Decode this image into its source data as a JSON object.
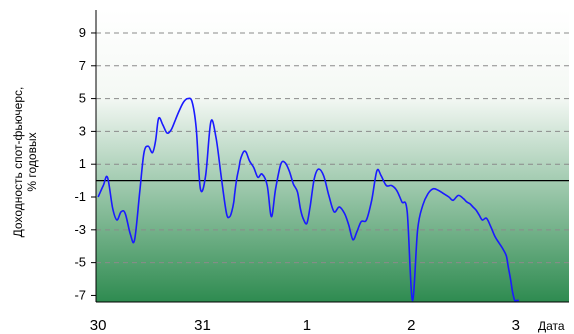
{
  "chart_data": {
    "type": "line",
    "title": "",
    "xlabel": "Дата",
    "ylabel": [
      "Доходность спот-фьючерс,",
      "% годовых"
    ],
    "ylim": [
      -7.4,
      10.4
    ],
    "xlim": [
      -0.02,
      4.51
    ],
    "yticks": [
      "9",
      "7",
      "5",
      "3",
      "1",
      "-1",
      "-3",
      "-5",
      "-7"
    ],
    "xticks": [
      "30",
      "31",
      "1",
      "2",
      "3"
    ],
    "grid": "horizontal dashed",
    "colors": {
      "line": "#1a1aff",
      "zero_line": "#000000",
      "bg_top": "#ffffff",
      "bg_bottom": "#2e8b50"
    },
    "series": [
      {
        "x": [
          0.0,
          0.05,
          0.09,
          0.14,
          0.18,
          0.22,
          0.26,
          0.31,
          0.35,
          0.4,
          0.44,
          0.48,
          0.52,
          0.55,
          0.58,
          0.62,
          0.66,
          0.7,
          0.74,
          0.78,
          0.82,
          0.86,
          0.9,
          0.94,
          0.98,
          1.03,
          1.08,
          1.13,
          1.18,
          1.23,
          1.26,
          1.28,
          1.3,
          1.31,
          1.33,
          1.35,
          1.36,
          1.38,
          1.4,
          1.42,
          1.45,
          1.49,
          1.53,
          1.57,
          1.62,
          1.66,
          1.7,
          1.75,
          1.79,
          1.83,
          1.87,
          1.91,
          1.94,
          1.97,
          2.0,
          2.03,
          2.07,
          2.11,
          2.16,
          2.21,
          2.26,
          2.31,
          2.36,
          2.4,
          2.44,
          2.48,
          2.52,
          2.57,
          2.62,
          2.67,
          2.71,
          2.76,
          2.81,
          2.86,
          2.91,
          2.96,
          3.01,
          3.06,
          3.11,
          3.16,
          3.21,
          3.26,
          3.31,
          3.36,
          3.4,
          3.45,
          3.5,
          3.53,
          3.56,
          3.59,
          3.62,
          3.65,
          3.68,
          3.72,
          3.76,
          3.8,
          3.84,
          3.88,
          3.91,
          3.93,
          3.95,
          3.97,
          3.99,
          4.01,
          4.03
        ],
        "y": [
          -1.0,
          -0.3,
          0.2,
          -1.7,
          -2.4,
          -1.9,
          -2.0,
          -3.3,
          -3.6,
          -0.6,
          1.7,
          2.1,
          1.7,
          2.4,
          3.8,
          3.4,
          2.9,
          3.1,
          3.7,
          4.3,
          4.8,
          5.0,
          4.8,
          3.2,
          -0.5,
          0.3,
          3.6,
          2.6,
          0.2,
          -2.0,
          -2.2,
          -1.9,
          -1.3,
          -0.7,
          0.2,
          0.8,
          1.2,
          1.6,
          1.8,
          1.7,
          1.2,
          0.8,
          0.2,
          0.4,
          -0.3,
          -2.2,
          -0.5,
          1.0,
          1.1,
          0.6,
          -0.2,
          -0.7,
          -1.8,
          -2.4,
          -2.6,
          -1.6,
          0.1,
          0.7,
          0.3,
          -0.9,
          -1.9,
          -1.6,
          -2.0,
          -2.7,
          -3.6,
          -3.1,
          -2.5,
          -2.4,
          -1.2,
          0.6,
          0.3,
          -0.3,
          -0.3,
          -0.6,
          -1.3,
          -1.9,
          -7.3,
          -3.0,
          -1.5,
          -0.8,
          -0.5,
          -0.6,
          -0.8,
          -1.0,
          -1.2,
          -0.9,
          -1.1,
          -1.3,
          -1.4,
          -1.6,
          -1.8,
          -2.1,
          -2.4,
          -2.3,
          -2.8,
          -3.4,
          -3.8,
          -4.2,
          -4.6,
          -5.3,
          -6.0,
          -6.8,
          -7.3,
          -7.3,
          -7.3
        ]
      }
    ]
  }
}
